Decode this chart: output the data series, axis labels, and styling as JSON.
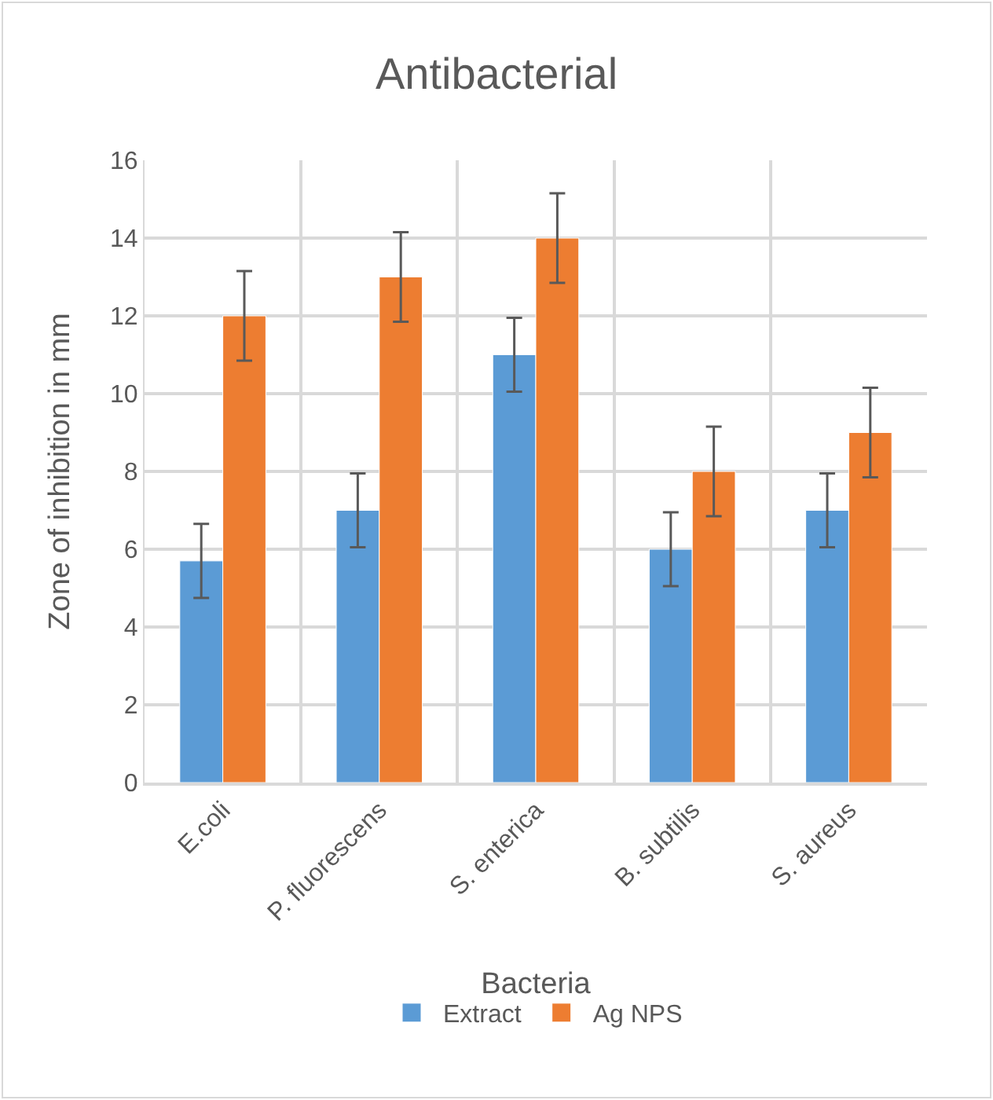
{
  "chart_data": {
    "type": "bar",
    "title": "Antibacterial",
    "xlabel": "Bacteria",
    "ylabel": "Zone of inhibition in mm",
    "categories": [
      "E.coli",
      "P. fluorescens",
      "S. enterica",
      "B. subtilis",
      "S. aureus"
    ],
    "series": [
      {
        "name": "Extract",
        "color": "#5b9bd5",
        "values": [
          5.7,
          7,
          11,
          6,
          7
        ],
        "errors": [
          0.95,
          0.95,
          0.95,
          0.95,
          0.95
        ]
      },
      {
        "name": "Ag NPS",
        "color": "#ed7d31",
        "values": [
          12,
          13,
          14,
          8,
          9
        ],
        "errors": [
          1.15,
          1.15,
          1.15,
          1.15,
          1.15
        ]
      }
    ],
    "ylim": [
      0,
      16
    ],
    "yticks": [
      0,
      2,
      4,
      6,
      8,
      10,
      12,
      14,
      16
    ],
    "grid": true,
    "legend": "bottom"
  }
}
